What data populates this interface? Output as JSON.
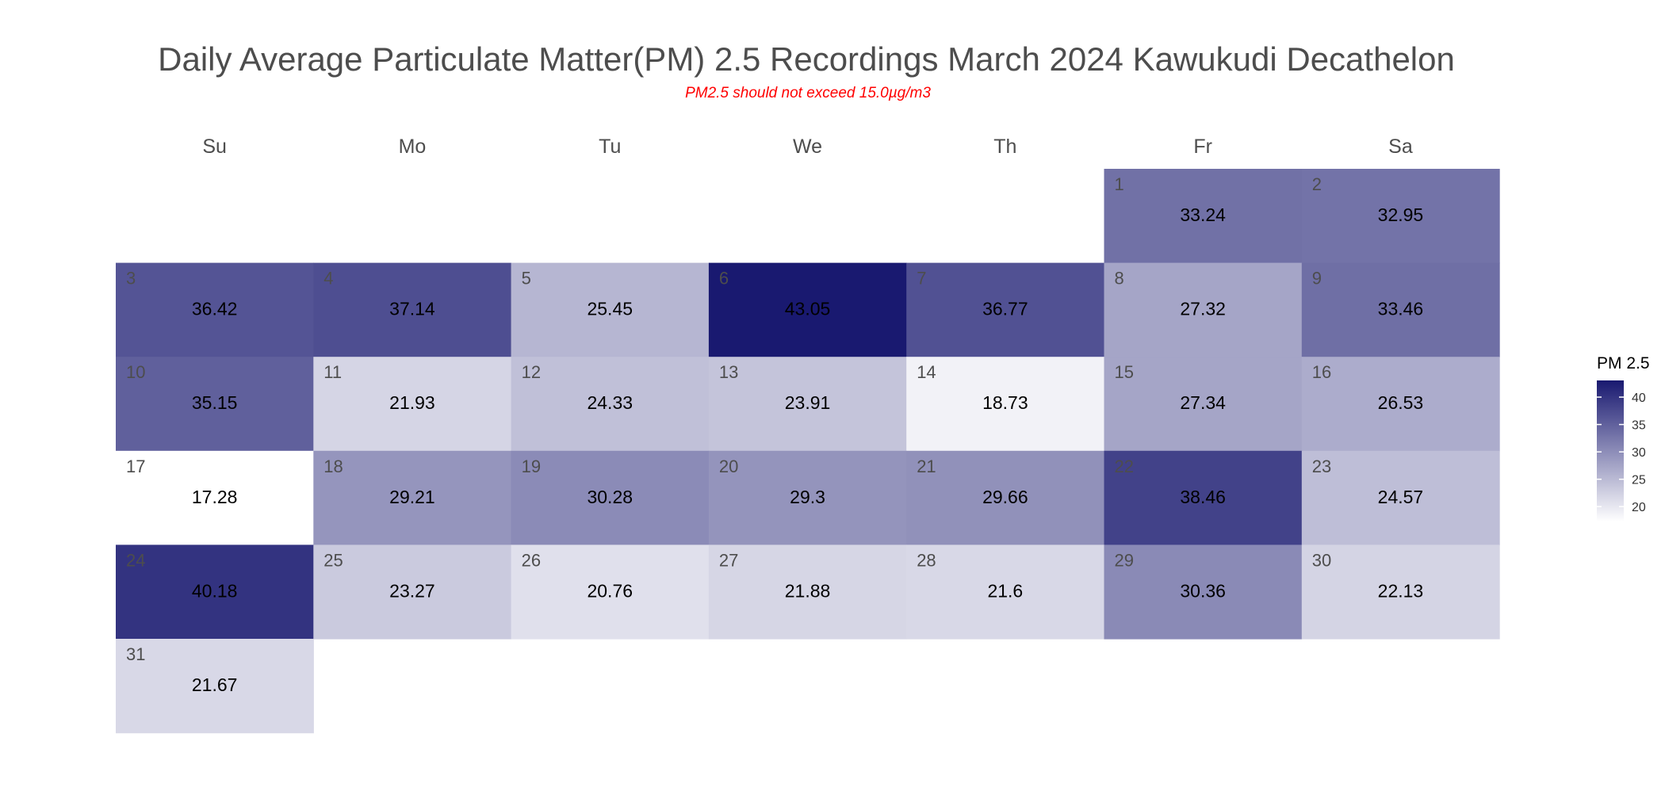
{
  "chart_data": {
    "type": "heatmap",
    "title": "Daily Average Particulate Matter(PM) 2.5 Recordings March 2024 Kawukudi Decathelon",
    "subtitle": "PM2.5 should not exceed 15.0µg/m3",
    "weekdays": [
      "Su",
      "Mo",
      "Tu",
      "We",
      "Th",
      "Fr",
      "Sa"
    ],
    "month": "March 2024",
    "first_weekday_index": 5,
    "days": [
      {
        "day": 1,
        "value": 33.24
      },
      {
        "day": 2,
        "value": 32.95
      },
      {
        "day": 3,
        "value": 36.42
      },
      {
        "day": 4,
        "value": 37.14
      },
      {
        "day": 5,
        "value": 25.45
      },
      {
        "day": 6,
        "value": 43.05
      },
      {
        "day": 7,
        "value": 36.77
      },
      {
        "day": 8,
        "value": 27.32
      },
      {
        "day": 9,
        "value": 33.46
      },
      {
        "day": 10,
        "value": 35.15
      },
      {
        "day": 11,
        "value": 21.93
      },
      {
        "day": 12,
        "value": 24.33
      },
      {
        "day": 13,
        "value": 23.91
      },
      {
        "day": 14,
        "value": 18.73
      },
      {
        "day": 15,
        "value": 27.34
      },
      {
        "day": 16,
        "value": 26.53
      },
      {
        "day": 17,
        "value": 17.28
      },
      {
        "day": 18,
        "value": 29.21
      },
      {
        "day": 19,
        "value": 30.28
      },
      {
        "day": 20,
        "value": 29.3
      },
      {
        "day": 21,
        "value": 29.66
      },
      {
        "day": 22,
        "value": 38.46
      },
      {
        "day": 23,
        "value": 24.57
      },
      {
        "day": 24,
        "value": 40.18
      },
      {
        "day": 25,
        "value": 23.27
      },
      {
        "day": 26,
        "value": 20.76
      },
      {
        "day": 27,
        "value": 21.88
      },
      {
        "day": 28,
        "value": 21.6
      },
      {
        "day": 29,
        "value": 30.36
      },
      {
        "day": 30,
        "value": 22.13
      },
      {
        "day": 31,
        "value": 21.67
      }
    ],
    "legend": {
      "title": "PM 2.5",
      "ticks": [
        20,
        25,
        30,
        35,
        40
      ],
      "range": [
        17.28,
        43.05
      ],
      "placement": "right"
    },
    "colors": {
      "low": "#ffffff",
      "high": "#191970"
    }
  }
}
